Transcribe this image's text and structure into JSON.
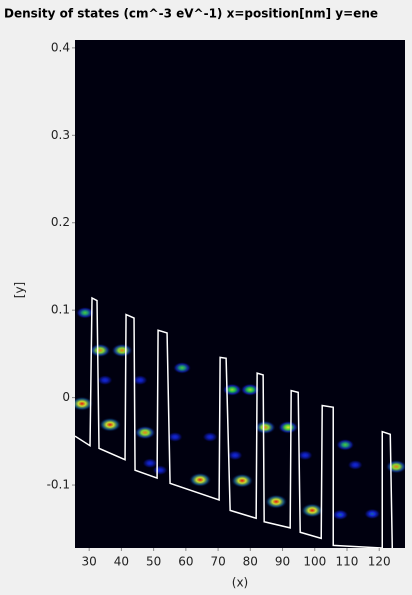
{
  "chart_data": {
    "type": "heatmap",
    "title": "Density of states (cm^-3 eV^-1)  x=position[nm]  y=ene",
    "x_label": "(x)",
    "y_label": "[y]",
    "xlim": [
      25.6,
      128
    ],
    "ylim": [
      -0.172,
      0.409
    ],
    "xticks": [
      30,
      40,
      50,
      60,
      70,
      80,
      90,
      100,
      110,
      120
    ],
    "yticks": [
      0.4,
      0.3,
      0.2,
      0.1,
      0,
      -0.1
    ],
    "background": "#00000f",
    "spots": {
      "x": [
        28.71,
        33.36,
        40.2,
        27.77,
        36.47,
        47.34,
        58.83,
        64.42,
        74.36,
        79.95,
        77.46,
        84.61,
        91.75,
        88.02,
        99.2,
        109.45,
        125.29,
        117.84,
        107.9,
        48.89,
        67.53,
        56.66,
        75.29,
        97.03,
        112.56,
        34.92,
        45.79,
        52.0
      ],
      "y": [
        0.097,
        0.054,
        0.054,
        -0.007,
        -0.031,
        -0.04,
        0.034,
        -0.094,
        0.009,
        0.009,
        -0.095,
        -0.034,
        -0.034,
        -0.119,
        -0.129,
        -0.054,
        -0.079,
        -0.133,
        -0.134,
        -0.075,
        -0.045,
        -0.045,
        -0.066,
        -0.066,
        -0.077,
        0.02,
        0.02,
        -0.083
      ],
      "intensity": [
        0.6,
        0.9,
        0.9,
        1.0,
        1.0,
        0.9,
        0.6,
        1.0,
        0.7,
        0.7,
        1.0,
        0.9,
        0.8,
        1.0,
        1.0,
        0.6,
        0.9,
        0.4,
        0.4,
        0.3,
        0.3,
        0.3,
        0.3,
        0.3,
        0.3,
        0.3,
        0.3,
        0.3
      ]
    },
    "band_edge": {
      "color": "#ffffff",
      "x": [
        25.6,
        30.26,
        30.88,
        32.43,
        33.05,
        41.13,
        41.44,
        43.92,
        44.23,
        51.07,
        51.38,
        54.17,
        55.1,
        70.32,
        70.63,
        72.49,
        73.74,
        81.81,
        82.12,
        83.98,
        84.3,
        92.37,
        92.68,
        94.86,
        95.48,
        102.0,
        102.31,
        105.73,
        105.73,
        120.94,
        120.94,
        123.43,
        124.05
      ],
      "y": [
        -0.044,
        -0.055,
        0.114,
        0.111,
        -0.058,
        -0.071,
        0.095,
        0.091,
        -0.083,
        -0.092,
        0.077,
        0.074,
        -0.098,
        -0.117,
        0.046,
        0.045,
        -0.129,
        -0.138,
        0.028,
        0.026,
        -0.142,
        -0.149,
        0.008,
        0.006,
        -0.154,
        -0.161,
        -0.009,
        -0.011,
        -0.169,
        -0.172,
        -0.039,
        -0.042,
        -0.172
      ]
    }
  }
}
